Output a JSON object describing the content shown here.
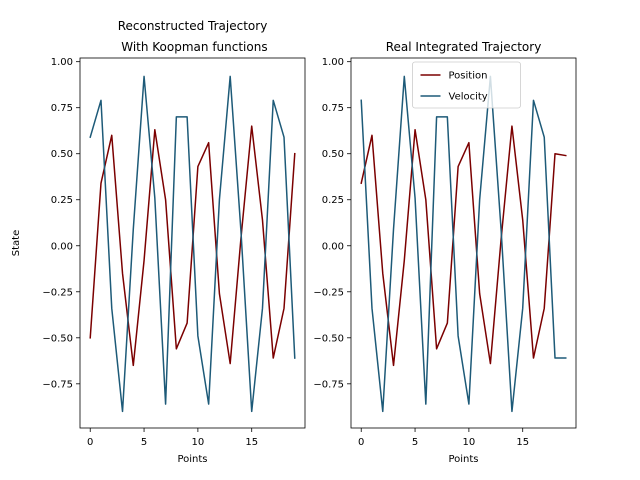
{
  "chart_data": [
    {
      "type": "line",
      "title": "Reconstructed Trajectory\n With Koopman functions",
      "xlabel": "Points",
      "ylabel": "State",
      "xlim": [
        -0.95,
        19.95
      ],
      "ylim": [
        -0.99,
        1.02
      ],
      "xticks": [
        0,
        5,
        10,
        15
      ],
      "yticks": [
        -0.75,
        -0.5,
        -0.25,
        0.0,
        0.25,
        0.5,
        0.75,
        1.0
      ],
      "ytick_labels": [
        "−0.75",
        "−0.50",
        "−0.25",
        "0.00",
        "0.25",
        "0.50",
        "0.75",
        "1.00"
      ],
      "show_legend": false,
      "series": [
        {
          "name": "Position",
          "color": "#7b0000",
          "x": [
            0,
            1,
            2,
            3,
            4,
            5,
            6,
            7,
            8,
            9,
            10,
            11,
            12,
            13,
            14,
            15,
            16,
            17,
            18,
            19
          ],
          "values": [
            -0.5,
            0.34,
            0.6,
            -0.15,
            -0.65,
            -0.08,
            0.63,
            0.25,
            -0.56,
            -0.42,
            0.43,
            0.56,
            -0.26,
            -0.64,
            0.04,
            0.65,
            0.14,
            -0.61,
            -0.34,
            0.5
          ]
        },
        {
          "name": "Velocity",
          "color": "#1d5a78",
          "x": [
            0,
            1,
            2,
            3,
            4,
            5,
            6,
            7,
            8,
            9,
            10,
            11,
            12,
            13,
            14,
            15,
            16,
            17,
            18,
            19
          ],
          "values": [
            0.59,
            0.79,
            -0.34,
            -0.9,
            0.09,
            0.92,
            0.26,
            -0.86,
            0.7,
            0.7,
            -0.49,
            -0.86,
            0.25,
            0.92,
            0.08,
            -0.9,
            -0.34,
            0.79,
            0.59,
            -0.61
          ]
        }
      ]
    },
    {
      "type": "line",
      "title": "Real Integrated Trajectory",
      "xlabel": "Points",
      "ylabel": "",
      "xlim": [
        -0.95,
        19.95
      ],
      "ylim": [
        -0.99,
        1.02
      ],
      "xticks": [
        0,
        5,
        10,
        15
      ],
      "yticks": [
        -0.75,
        -0.5,
        -0.25,
        0.0,
        0.25,
        0.5,
        0.75,
        1.0
      ],
      "ytick_labels": [
        "−0.75",
        "−0.50",
        "−0.25",
        "0.00",
        "0.25",
        "0.50",
        "0.75",
        "1.00"
      ],
      "show_legend": true,
      "legend_position": "top-center",
      "series": [
        {
          "name": "Position",
          "color": "#7b0000",
          "x": [
            0,
            1,
            2,
            3,
            4,
            5,
            6,
            7,
            8,
            9,
            10,
            11,
            12,
            13,
            14,
            15,
            16,
            17,
            18,
            19
          ],
          "values": [
            0.34,
            0.6,
            -0.15,
            -0.65,
            -0.08,
            0.63,
            0.25,
            -0.56,
            -0.42,
            0.43,
            0.56,
            -0.26,
            -0.64,
            0.04,
            0.65,
            0.14,
            -0.61,
            -0.34,
            0.5,
            0.49
          ]
        },
        {
          "name": "Velocity",
          "color": "#1d5a78",
          "x": [
            0,
            1,
            2,
            3,
            4,
            5,
            6,
            7,
            8,
            9,
            10,
            11,
            12,
            13,
            14,
            15,
            16,
            17,
            18,
            19
          ],
          "values": [
            0.79,
            -0.34,
            -0.9,
            0.09,
            0.92,
            0.26,
            -0.86,
            0.7,
            0.7,
            -0.49,
            -0.86,
            0.25,
            0.92,
            0.08,
            -0.9,
            -0.34,
            0.79,
            0.59,
            -0.61,
            -0.61
          ]
        }
      ]
    }
  ]
}
